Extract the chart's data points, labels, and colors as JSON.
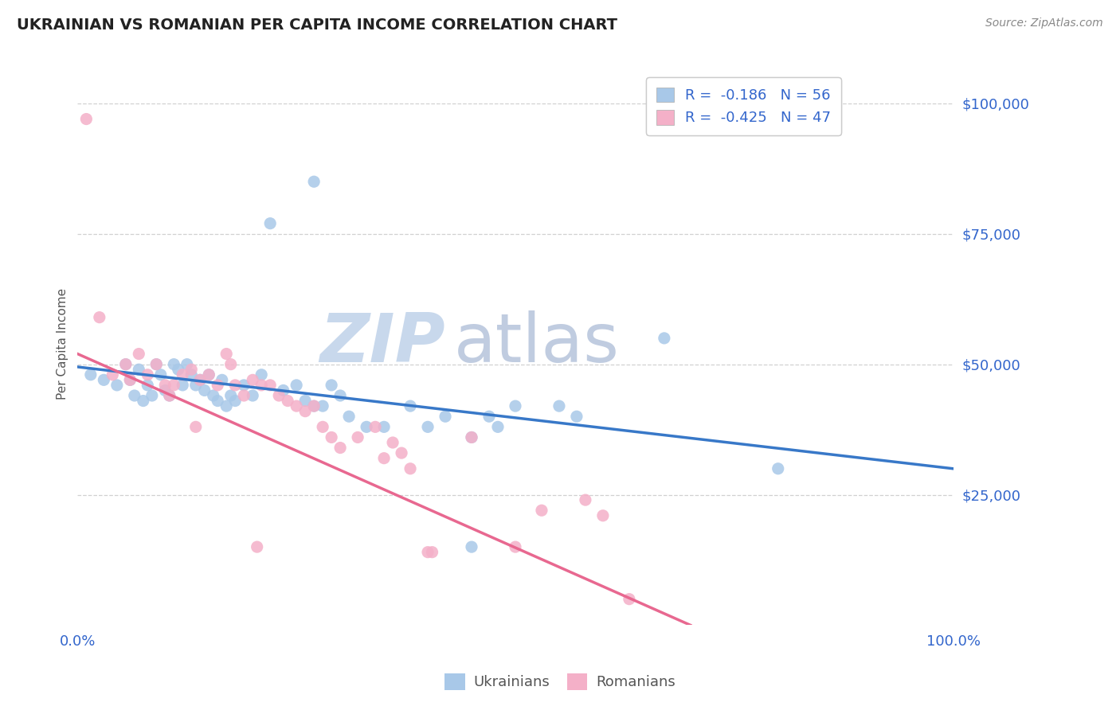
{
  "title": "UKRAINIAN VS ROMANIAN PER CAPITA INCOME CORRELATION CHART",
  "source": "Source: ZipAtlas.com",
  "ylabel": "Per Capita Income",
  "ytick_labels": [
    "$25,000",
    "$50,000",
    "$75,000",
    "$100,000"
  ],
  "ytick_values": [
    25000,
    50000,
    75000,
    100000
  ],
  "watermark_zip": "ZIP",
  "watermark_atlas": "atlas",
  "legend_line1": "R =  -0.186   N = 56",
  "legend_line2": "R =  -0.425   N = 47",
  "ukrainian_dot_color": "#a8c8e8",
  "romanian_dot_color": "#f4b0c8",
  "ukrainian_line_color": "#3878c8",
  "romanian_line_color": "#e86890",
  "watermark_zip_color": "#c8d8ec",
  "watermark_atlas_color": "#c0cce0",
  "legend_box_blue": "#a8c8e8",
  "legend_box_pink": "#f4b0c8",
  "legend_text_color": "#3366cc",
  "axis_label_color": "#3366cc",
  "title_color": "#222222",
  "source_color": "#888888",
  "ylabel_color": "#555555",
  "background": "#ffffff",
  "grid_color": "#cccccc",
  "bottom_legend_color": "#555555",
  "uk_x": [
    1.5,
    3.0,
    4.5,
    5.5,
    6.0,
    6.5,
    7.0,
    7.5,
    8.0,
    8.5,
    9.0,
    9.5,
    10.0,
    10.5,
    11.0,
    11.5,
    12.0,
    12.5,
    13.0,
    13.5,
    14.0,
    14.5,
    15.0,
    15.5,
    16.0,
    16.5,
    17.0,
    17.5,
    18.0,
    19.0,
    20.0,
    21.0,
    22.0,
    23.5,
    25.0,
    26.0,
    27.0,
    28.0,
    29.0,
    30.0,
    31.0,
    33.0,
    35.0,
    38.0,
    40.0,
    42.0,
    45.0,
    47.0,
    48.0,
    50.0,
    55.0,
    57.0,
    67.0,
    80.0,
    27.0,
    45.0
  ],
  "uk_y": [
    48000,
    47000,
    46000,
    50000,
    47000,
    44000,
    49000,
    43000,
    46000,
    44000,
    50000,
    48000,
    45000,
    44000,
    50000,
    49000,
    46000,
    50000,
    48000,
    46000,
    47000,
    45000,
    48000,
    44000,
    43000,
    47000,
    42000,
    44000,
    43000,
    46000,
    44000,
    48000,
    77000,
    45000,
    46000,
    43000,
    42000,
    42000,
    46000,
    44000,
    40000,
    38000,
    38000,
    42000,
    38000,
    40000,
    36000,
    40000,
    38000,
    42000,
    42000,
    40000,
    55000,
    30000,
    85000,
    15000
  ],
  "ro_x": [
    1.0,
    4.0,
    5.5,
    6.0,
    7.0,
    8.0,
    9.0,
    10.0,
    11.0,
    12.0,
    13.0,
    14.0,
    15.0,
    16.0,
    17.0,
    17.5,
    18.0,
    19.0,
    20.0,
    21.0,
    22.0,
    23.0,
    24.0,
    25.0,
    26.0,
    27.0,
    28.0,
    29.0,
    30.0,
    32.0,
    34.0,
    35.0,
    36.0,
    37.0,
    38.0,
    40.0,
    40.5,
    45.0,
    50.0,
    53.0,
    58.0,
    60.0,
    63.0,
    2.5,
    13.5,
    10.5,
    20.5
  ],
  "ro_y": [
    97000,
    48000,
    50000,
    47000,
    52000,
    48000,
    50000,
    46000,
    46000,
    48000,
    49000,
    47000,
    48000,
    46000,
    52000,
    50000,
    46000,
    44000,
    47000,
    46000,
    46000,
    44000,
    43000,
    42000,
    41000,
    42000,
    38000,
    36000,
    34000,
    36000,
    38000,
    32000,
    35000,
    33000,
    30000,
    14000,
    14000,
    36000,
    15000,
    22000,
    24000,
    21000,
    5000,
    59000,
    38000,
    44000,
    15000
  ],
  "ylim": [
    0,
    108000
  ],
  "xlim": [
    0,
    100
  ],
  "uk_trend_x0": 0,
  "uk_trend_y0": 49500,
  "uk_trend_x1": 100,
  "uk_trend_y1": 30000,
  "ro_trend_x0": 0,
  "ro_trend_y0": 52000,
  "ro_trend_x1": 70,
  "ro_trend_y1": 0
}
